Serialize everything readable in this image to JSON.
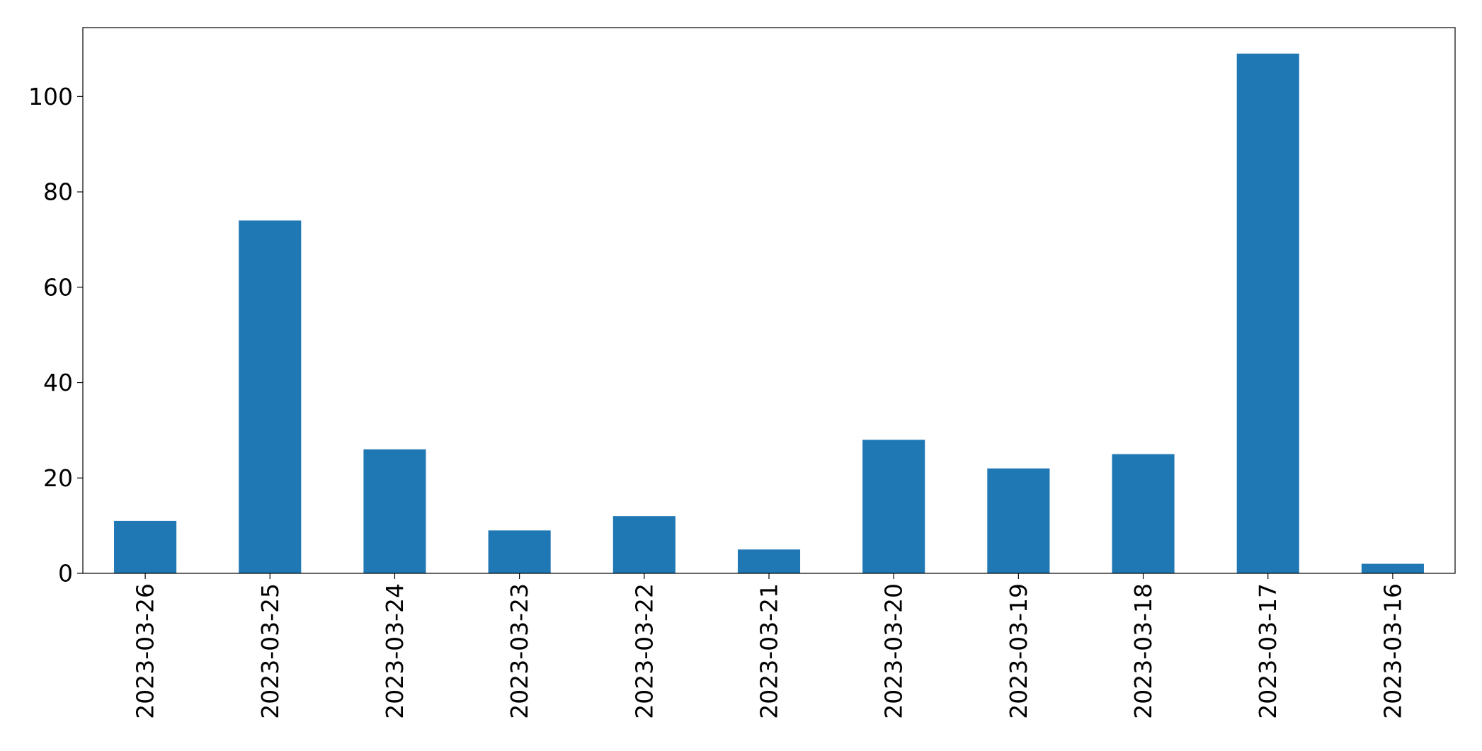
{
  "chart_data": {
    "type": "bar",
    "title": "",
    "xlabel": "",
    "ylabel": "",
    "categories": [
      "2023-03-26",
      "2023-03-25",
      "2023-03-24",
      "2023-03-23",
      "2023-03-22",
      "2023-03-21",
      "2023-03-20",
      "2023-03-19",
      "2023-03-18",
      "2023-03-17",
      "2023-03-16"
    ],
    "values": [
      11,
      74,
      26,
      9,
      12,
      5,
      28,
      22,
      25,
      109,
      2
    ],
    "ylim": [
      0,
      114.45
    ],
    "yticks": [
      0,
      20,
      40,
      60,
      80,
      100
    ],
    "ytick_labels": [
      "0",
      "20",
      "40",
      "60",
      "80",
      "100"
    ],
    "bar_color": "#1f77b4",
    "grid": false,
    "legend": "none"
  }
}
